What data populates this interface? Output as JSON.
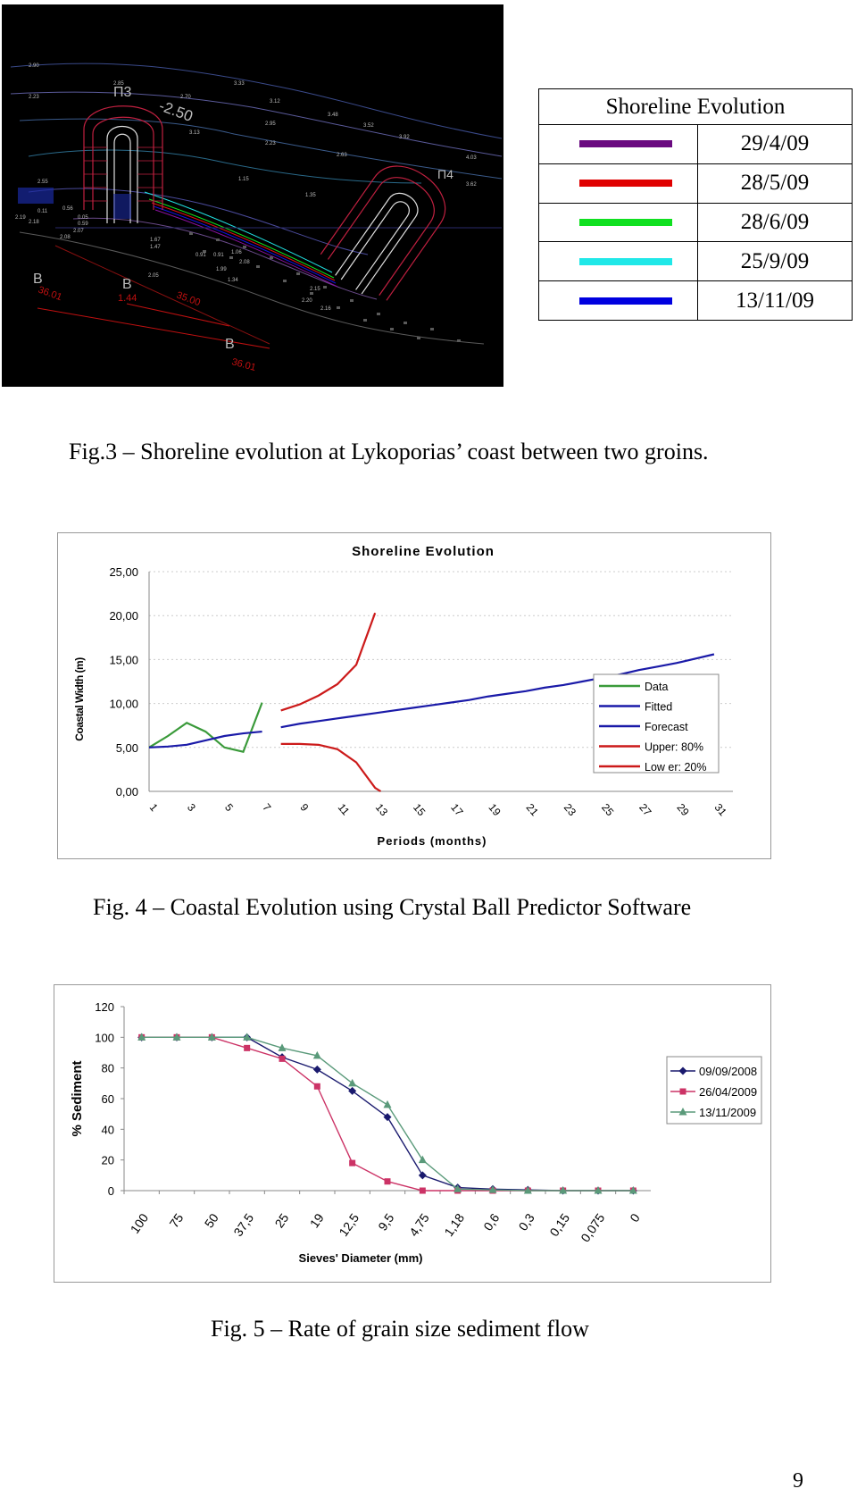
{
  "fig3": {
    "caption": "Fig.3 – Shoreline evolution at Lykoporias’ coast between two groins.",
    "map_labels": [
      "2.90",
      "2.23",
      "2.85",
      "2.70",
      "3.33",
      "3.12",
      "3.48",
      "3.52",
      "3.92",
      "2.95",
      "2.23",
      "3.13",
      "2.63",
      "4.03",
      "3.62",
      "2.55",
      "1.15",
      "1.35",
      "0.11",
      "0.56",
      "2.19",
      "2.18",
      "0.05",
      "0.59",
      "2.07",
      "2.08",
      "1.67",
      "1.47",
      "0.91",
      "0.91",
      "1.06",
      "2.08",
      "1.99",
      "2.05",
      "1.34",
      "2.15",
      "2.20",
      "2.16",
      "36.01",
      "35.00",
      "36.01",
      "1.44",
      "Π3",
      "-2.50",
      "Π4",
      "B",
      "B",
      "B"
    ],
    "legend": {
      "title": "Shoreline Evolution",
      "entries": [
        {
          "date": "29/4/09",
          "color": "#6a0a80"
        },
        {
          "date": "28/5/09",
          "color": "#e00000"
        },
        {
          "date": "28/6/09",
          "color": "#10e020"
        },
        {
          "date": "25/9/09",
          "color": "#20e8e8"
        },
        {
          "date": "13/11/09",
          "color": "#0000e0"
        }
      ]
    }
  },
  "fig4": {
    "caption": "Fig. 4 – Coastal Evolution using Crystal Ball Predictor Software"
  },
  "fig5": {
    "caption": "Fig. 5 – Rate of grain size sediment flow"
  },
  "page_number": "9",
  "chart_data": [
    {
      "id": "coastal",
      "type": "line",
      "title": "Shoreline Evolution",
      "xlabel": "Periods (months)",
      "ylabel": "Coastal Width (m)",
      "ylim": [
        0,
        25
      ],
      "y_ticks": [
        "0,00",
        "5,00",
        "10,00",
        "15,00",
        "20,00",
        "25,00"
      ],
      "x_ticks": [
        "1",
        "3",
        "5",
        "7",
        "9",
        "11",
        "13",
        "15",
        "17",
        "19",
        "21",
        "23",
        "25",
        "27",
        "29",
        "31"
      ],
      "legend_position": "right",
      "series": [
        {
          "name": "Data",
          "color": "#3a9a3a",
          "x": [
            1,
            2,
            3,
            4,
            5,
            6,
            7
          ],
          "y": [
            5.0,
            6.3,
            7.8,
            6.8,
            5.0,
            4.5,
            10.1
          ]
        },
        {
          "name": "Fitted",
          "color": "#1a1aa8",
          "x": [
            1,
            2,
            3,
            4,
            5,
            6,
            7
          ],
          "y": [
            5.0,
            5.1,
            5.3,
            5.8,
            6.3,
            6.6,
            6.8
          ]
        },
        {
          "name": "Forecast",
          "color": "#1a1aa8",
          "x": [
            8,
            9,
            10,
            11,
            12,
            13,
            14,
            15,
            16,
            17,
            18,
            19,
            20,
            21,
            22,
            23,
            24,
            25,
            26,
            27,
            28,
            29,
            30,
            31
          ],
          "y": [
            7.3,
            7.7,
            8.0,
            8.3,
            8.6,
            8.9,
            9.2,
            9.5,
            9.8,
            10.1,
            10.4,
            10.8,
            11.1,
            11.4,
            11.8,
            12.1,
            12.5,
            12.9,
            13.3,
            13.8,
            14.2,
            14.6,
            15.1,
            15.6
          ]
        },
        {
          "name": "Upper: 80%",
          "color": "#cc1a1a",
          "x": [
            8,
            9,
            10,
            11,
            12,
            13
          ],
          "y": [
            9.2,
            9.9,
            10.9,
            12.2,
            14.4,
            20.3
          ]
        },
        {
          "name": "Low er: 20%",
          "color": "#cc1a1a",
          "x": [
            8,
            9,
            10,
            11,
            12,
            13,
            13.3
          ],
          "y": [
            5.4,
            5.4,
            5.3,
            4.8,
            3.3,
            0.4,
            0
          ]
        }
      ]
    },
    {
      "id": "sediment",
      "type": "line",
      "title": "",
      "xlabel": "Sieves' Diameter (mm)",
      "ylabel": "% Sediment",
      "ylim": [
        0,
        120
      ],
      "y_ticks": [
        "0",
        "20",
        "40",
        "60",
        "80",
        "100",
        "120"
      ],
      "categories": [
        "100",
        "75",
        "50",
        "37,5",
        "25",
        "19",
        "12,5",
        "9,5",
        "4,75",
        "1,18",
        "0,6",
        "0,3",
        "0,15",
        "0,075",
        "0"
      ],
      "legend_position": "right",
      "series": [
        {
          "name": "09/09/2008",
          "color": "#1a1a6e",
          "marker": "diamond",
          "values": [
            100,
            100,
            100,
            100,
            87,
            79,
            65,
            48,
            10,
            2,
            1,
            0.5,
            0,
            0,
            0
          ]
        },
        {
          "name": "26/04/2009",
          "color": "#cc3366",
          "marker": "square",
          "values": [
            100,
            100,
            100,
            93,
            86,
            68,
            18,
            6,
            0,
            0,
            0,
            0,
            0,
            0,
            0
          ]
        },
        {
          "name": "13/11/2009",
          "color": "#5a9a7a",
          "marker": "triangle",
          "values": [
            100,
            100,
            100,
            100,
            93,
            88,
            70,
            56,
            20,
            1,
            0.5,
            0,
            0,
            0,
            0
          ]
        }
      ]
    }
  ]
}
